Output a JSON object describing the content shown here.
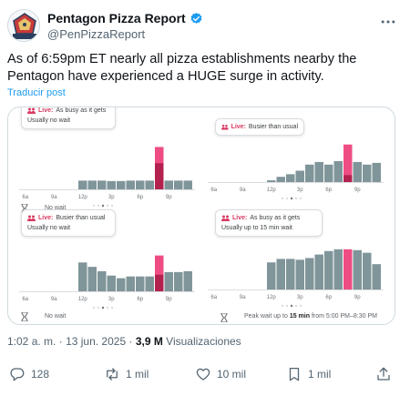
{
  "tweet": {
    "display_name": "Pentagon Pizza Report",
    "handle": "@PenPizzaReport",
    "avatar_text": "PENTAGON",
    "verified": true,
    "text": "As of 6:59pm ET nearly all pizza establishments nearby the Pentagon have experienced a HUGE surge in activity.",
    "translate": "Traducir post",
    "time": "1:02 a. m.",
    "date": "13 jun. 2025",
    "separator": "·",
    "views": "3,9 M",
    "views_label": "Visualizaciones"
  },
  "actions": {
    "replies": "128",
    "reposts": "1 mil",
    "likes": "10 mil",
    "bookmarks": "1 mil"
  },
  "colors": {
    "bar": "#7f9599",
    "live_bar": "#ee4d84",
    "live_bar_dark": "#b3224f",
    "accent": "#1d9bf0"
  },
  "panels": [
    {
      "live_label": "Live:",
      "status": "As busy as it gets",
      "subtitle": "Usually no wait",
      "footer": "No wait",
      "ticks": [
        "6a",
        "9a",
        "12p",
        "3p",
        "6p",
        "9p"
      ],
      "chart_data": {
        "type": "bar",
        "hour_slots": 18,
        "values": [
          0,
          0,
          0,
          0,
          0,
          0,
          20,
          20,
          20,
          19,
          19,
          20,
          20,
          20,
          60,
          20,
          20,
          20
        ],
        "live_index": 14,
        "live_value": 97
      }
    },
    {
      "live_label": "Live:",
      "status": "Busier than usual",
      "subtitle": "",
      "footer": "",
      "ticks": [
        "6a",
        "9a",
        "12p",
        "3p",
        "6p",
        "9p"
      ],
      "chart_data": {
        "type": "bar",
        "hour_slots": 18,
        "values": [
          0,
          0,
          0,
          0,
          0,
          0,
          4,
          12,
          18,
          26,
          40,
          46,
          40,
          48,
          16,
          46,
          40,
          44
        ],
        "live_index": 14,
        "live_value": 86
      }
    },
    {
      "live_label": "Live:",
      "status": "Busier than usual",
      "subtitle": "Usually no wait",
      "footer": "No wait",
      "ticks": [
        "6a",
        "9a",
        "12p",
        "3p",
        "6p",
        "9p"
      ],
      "chart_data": {
        "type": "bar",
        "hour_slots": 18,
        "values": [
          0,
          0,
          0,
          0,
          0,
          0,
          66,
          56,
          46,
          36,
          30,
          34,
          34,
          34,
          38,
          44,
          44,
          46
        ],
        "live_index": 14,
        "live_value": 82
      }
    },
    {
      "live_label": "Live:",
      "status": "As busy as it gets",
      "subtitle": "Usually up to 15 min wait",
      "footer": "Peak wait up to",
      "footer_bold": "15 min",
      "footer_tail": "from 5:00 PM–8:30 PM",
      "ticks": [
        "6a",
        "9a",
        "12p",
        "3p",
        "6p",
        "9p"
      ],
      "chart_data": {
        "type": "bar",
        "hour_slots": 18,
        "values": [
          0,
          0,
          0,
          0,
          0,
          0,
          62,
          70,
          70,
          68,
          72,
          80,
          88,
          92,
          0,
          90,
          84,
          58
        ],
        "live_index": 14,
        "live_value": 92
      }
    }
  ]
}
